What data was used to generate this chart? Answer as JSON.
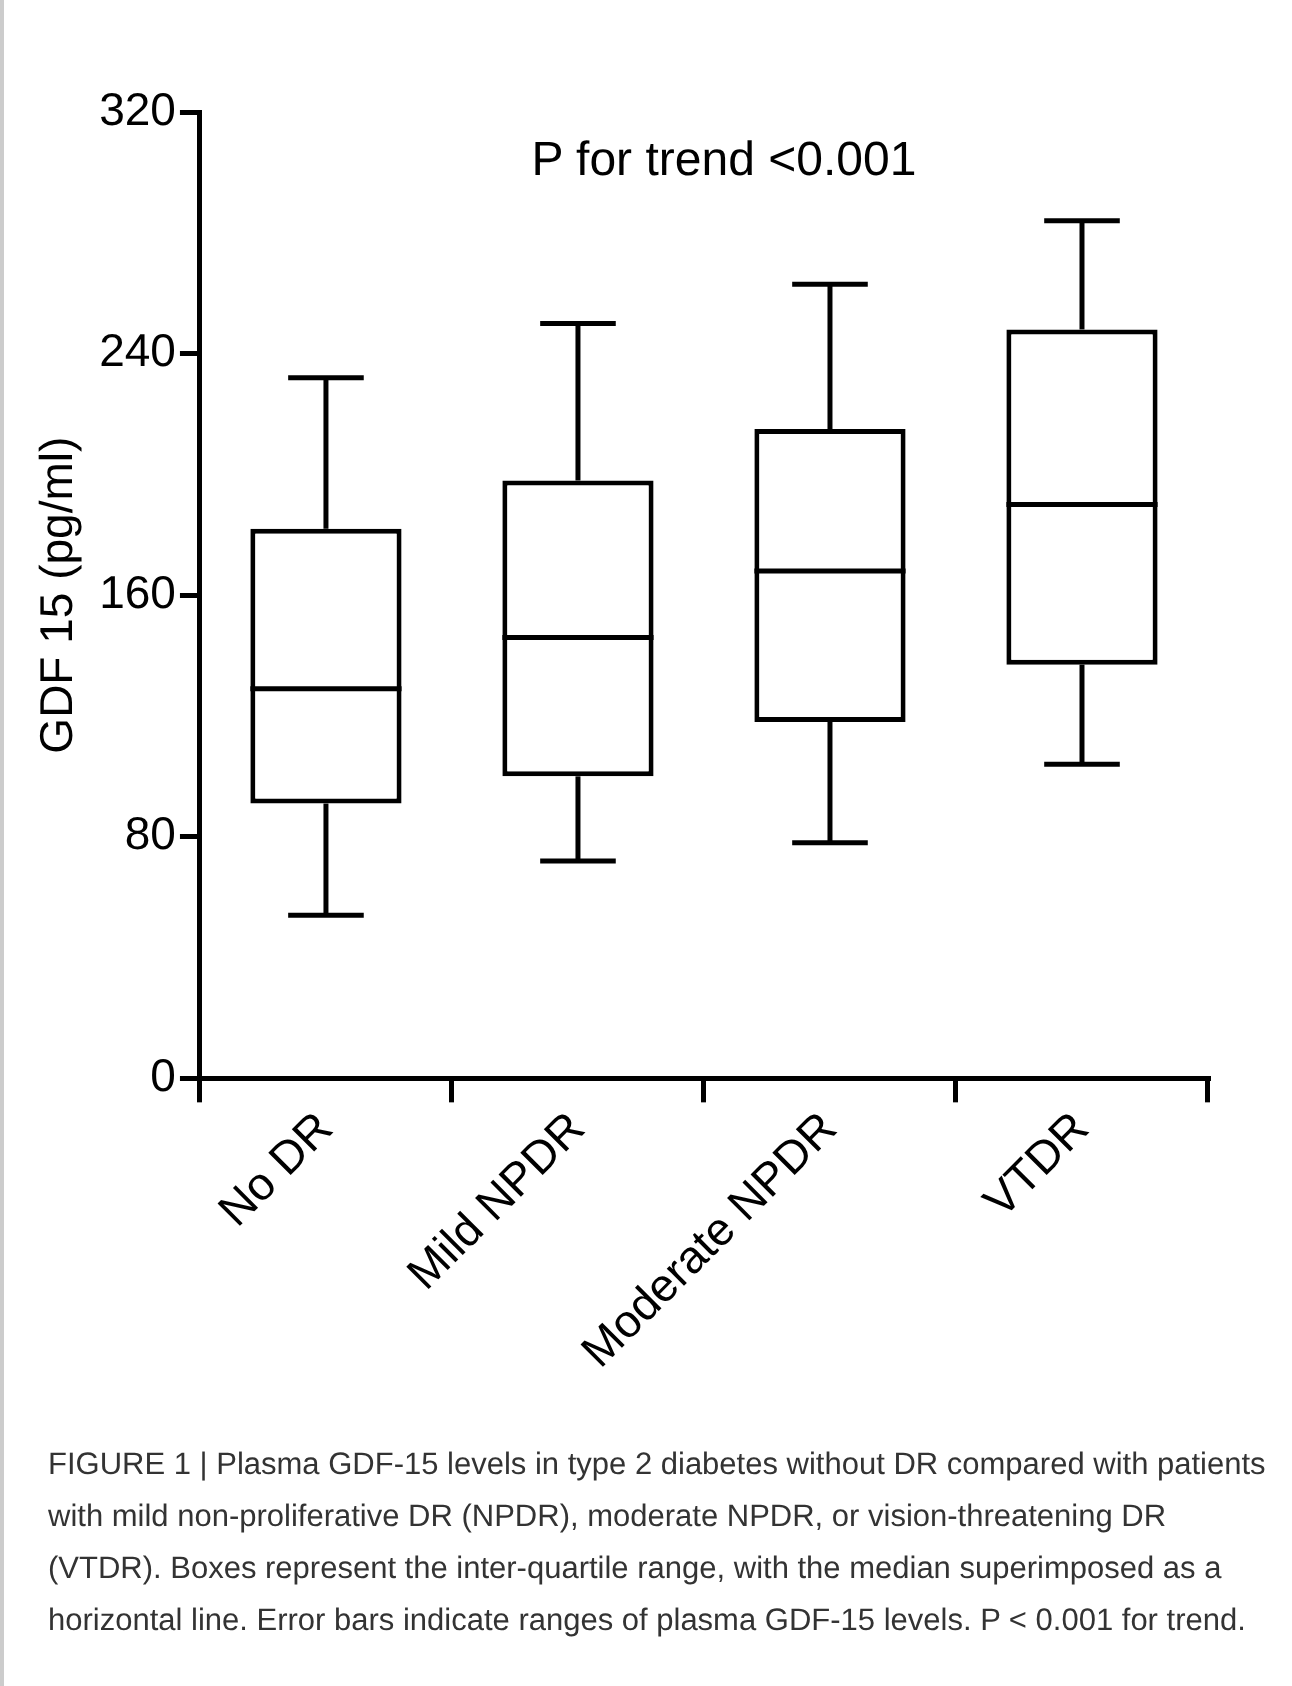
{
  "chart_data": {
    "type": "box",
    "ylabel": "GDF 15 (pg/ml)",
    "categories": [
      "No DR",
      "Mild NPDR",
      "Moderate NPDR",
      "VTDR"
    ],
    "boxes": [
      {
        "low": 54,
        "q1": 91,
        "median": 129,
        "q3": 182,
        "high": 232
      },
      {
        "low": 72,
        "q1": 100,
        "median": 146,
        "q3": 198,
        "high": 250
      },
      {
        "low": 78,
        "q1": 118,
        "median": 168,
        "q3": 215,
        "high": 263
      },
      {
        "low": 104,
        "q1": 137,
        "median": 190,
        "q3": 248,
        "high": 284
      }
    ],
    "color": "#000000",
    "ylim": [
      0,
      320
    ],
    "yticks": [
      0,
      80,
      160,
      240,
      320
    ],
    "grid": false,
    "legend": false,
    "annotations": [
      "P for trend <0.001",
      "FIGURE 1 | Plasma GDF-15 levels in type 2 diabetes without DR compared with patients with mild non-proliferative DR (NPDR), moderate NPDR, or vision-threatening DR (VTDR). Boxes represent the inter-quartile range, with the median superimposed as a horizontal line. Error bars indicate ranges of plasma GDF-15 levels. P < 0.001 for trend."
    ]
  }
}
